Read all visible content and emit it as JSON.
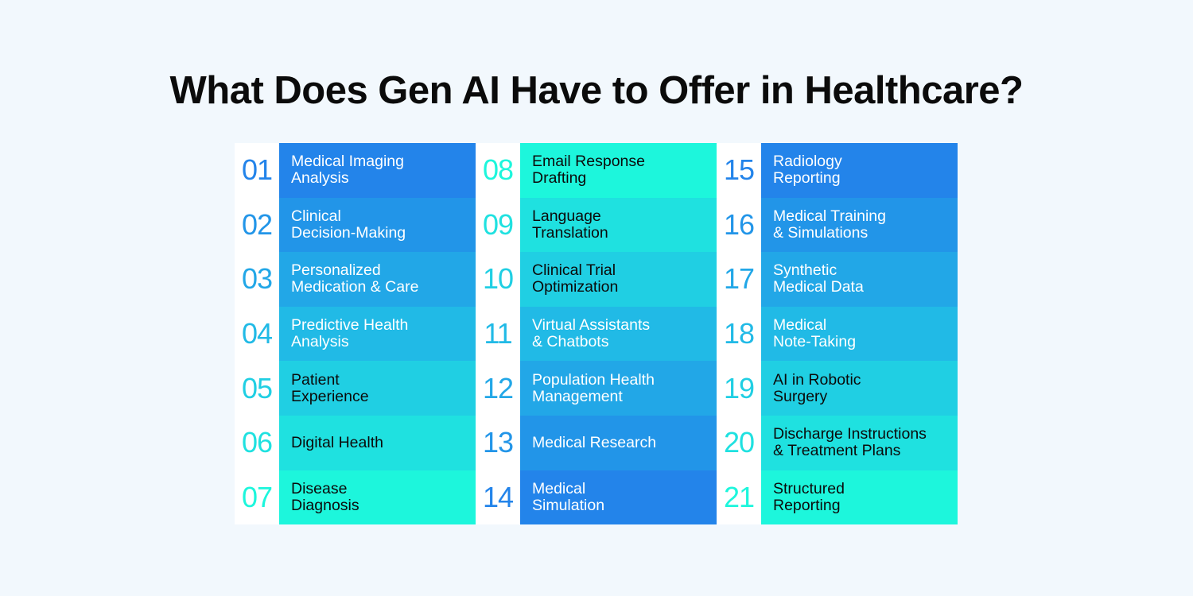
{
  "title": "What Does Gen AI Have to Offer in Healthcare?",
  "columns": [
    {
      "items": [
        {
          "number": "01",
          "label": "Medical Imaging\nAnalysis",
          "bg": "#2384ea",
          "num_color": "#2384ea",
          "text_color": "#ffffff"
        },
        {
          "number": "02",
          "label": "Clinical\nDecision-Making",
          "bg": "#2295e8",
          "num_color": "#2295e8",
          "text_color": "#ffffff"
        },
        {
          "number": "03",
          "label": "Personalized\nMedication & Care",
          "bg": "#22a7e7",
          "num_color": "#22a7e7",
          "text_color": "#ffffff"
        },
        {
          "number": "04",
          "label": "Predictive Health\nAnalysis",
          "bg": "#21bae6",
          "num_color": "#21bae6",
          "text_color": "#ffffff"
        },
        {
          "number": "05",
          "label": "Patient\nExperience",
          "bg": "#20cfe3",
          "num_color": "#20cfe3",
          "text_color": "#0b0b0b"
        },
        {
          "number": "06",
          "label": "Digital Health",
          "bg": "#1fe1e0",
          "num_color": "#1fe1e0",
          "text_color": "#0b0b0b"
        },
        {
          "number": "07",
          "label": "Disease\nDiagnosis",
          "bg": "#1df6dc",
          "num_color": "#1df6dc",
          "text_color": "#0b0b0b"
        }
      ]
    },
    {
      "items": [
        {
          "number": "08",
          "label": "Email Response\nDrafting",
          "bg": "#1df6dc",
          "num_color": "#1df6dc",
          "text_color": "#0b0b0b"
        },
        {
          "number": "09",
          "label": "Language\nTranslation",
          "bg": "#1fe1e0",
          "num_color": "#1fe1e0",
          "text_color": "#0b0b0b"
        },
        {
          "number": "10",
          "label": "Clinical Trial\nOptimization",
          "bg": "#20cfe3",
          "num_color": "#20cfe3",
          "text_color": "#0b0b0b"
        },
        {
          "number": "11",
          "label": "Virtual Assistants\n& Chatbots",
          "bg": "#21bae6",
          "num_color": "#21bae6",
          "text_color": "#ffffff"
        },
        {
          "number": "12",
          "label": "Population Health\nManagement",
          "bg": "#22a7e7",
          "num_color": "#22a7e7",
          "text_color": "#ffffff"
        },
        {
          "number": "13",
          "label": "Medical Research",
          "bg": "#2295e8",
          "num_color": "#2295e8",
          "text_color": "#ffffff"
        },
        {
          "number": "14",
          "label": "Medical\nSimulation",
          "bg": "#2384ea",
          "num_color": "#2384ea",
          "text_color": "#ffffff"
        }
      ]
    },
    {
      "items": [
        {
          "number": "15",
          "label": "Radiology\nReporting",
          "bg": "#2384ea",
          "num_color": "#2384ea",
          "text_color": "#ffffff"
        },
        {
          "number": "16",
          "label": "Medical Training\n& Simulations",
          "bg": "#2295e8",
          "num_color": "#2295e8",
          "text_color": "#ffffff"
        },
        {
          "number": "17",
          "label": "Synthetic\nMedical Data",
          "bg": "#22a7e7",
          "num_color": "#22a7e7",
          "text_color": "#ffffff"
        },
        {
          "number": "18",
          "label": "Medical\nNote-Taking",
          "bg": "#21bae6",
          "num_color": "#21bae6",
          "text_color": "#ffffff"
        },
        {
          "number": "19",
          "label": "AI in Robotic\nSurgery",
          "bg": "#20cfe3",
          "num_color": "#20cfe3",
          "text_color": "#0b0b0b"
        },
        {
          "number": "20",
          "label": "Discharge Instructions\n& Treatment Plans",
          "bg": "#1fe1e0",
          "num_color": "#1fe1e0",
          "text_color": "#0b0b0b"
        },
        {
          "number": "21",
          "label": "Structured\nReporting",
          "bg": "#1df6dc",
          "num_color": "#1df6dc",
          "text_color": "#0b0b0b"
        }
      ]
    }
  ]
}
